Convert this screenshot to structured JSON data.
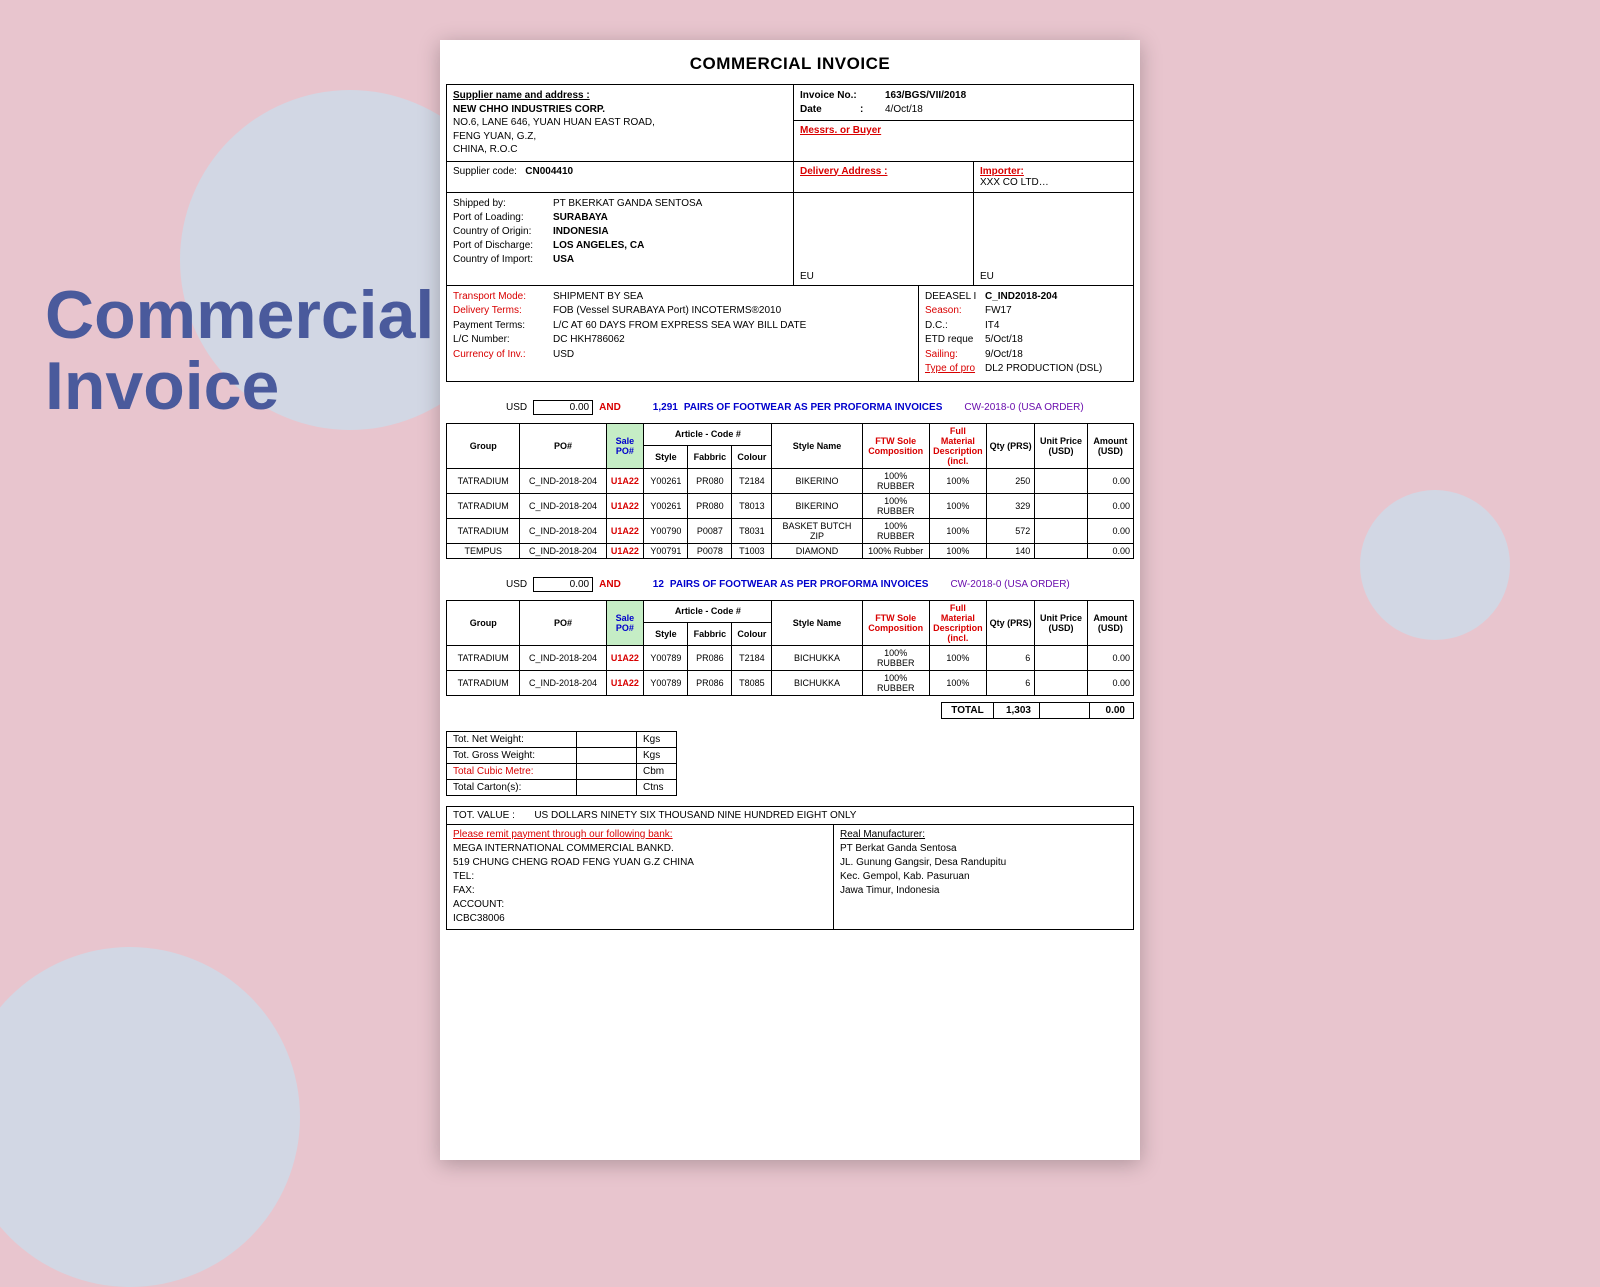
{
  "sideTitle": "Commercial\nInvoice",
  "docTitle": "COMMERCIAL INVOICE",
  "supplier": {
    "heading": "Supplier name and address :",
    "name": "NEW CHHO INDUSTRIES CORP.",
    "line1": "NO.6, LANE 646, YUAN HUAN EAST ROAD,",
    "line2": "FENG YUAN, G.Z,",
    "line3": "CHINA, R.O.C"
  },
  "invoice": {
    "noLabel": "Invoice No.:",
    "no": "163/BGS/VII/2018",
    "dateLabel": "Date",
    "dateColon": ":",
    "date": "4/Oct/18",
    "buyerLabel": "Messrs. or Buyer"
  },
  "supplierCode": {
    "label": "Supplier code:",
    "value": "CN004410"
  },
  "deliveryAddressLabel": "Delivery Address :",
  "importer": {
    "label": "Importer:",
    "value": "XXX CO LTD…"
  },
  "shipping": {
    "shippedByLabel": "Shipped by:",
    "shippedBy": "PT BKERKAT GANDA SENTOSA",
    "portLoadingLabel": "Port of Loading:",
    "portLoading": "SURABAYA",
    "originLabel": "Country of Origin:",
    "origin": "INDONESIA",
    "dischargeLabel": "Port of Discharge:",
    "discharge": "LOS ANGELES, CA",
    "importLabel": "Country of Import:",
    "import": "USA",
    "eu1": "EU",
    "eu2": "EU"
  },
  "terms": {
    "transportModeLabel": "Transport Mode:",
    "transportMode": "SHIPMENT BY SEA",
    "deliveryTermsLabel": "Delivery Terms:",
    "deliveryTerms": "FOB (Vessel SURABAYA Port) INCOTERMS®2010",
    "paymentTermsLabel": "Payment Terms:",
    "paymentTerms": "L/C AT 60 DAYS FROM EXPRESS SEA WAY BILL  DATE",
    "lcNumberLabel": "L/C Number:",
    "lcNumber": "DC HKH786062",
    "currencyLabel": "Currency of Inv.:",
    "currency": "USD"
  },
  "rightInfo": {
    "deeaselLabel": "DEEASEL I",
    "deeasel": "C_IND2018-204",
    "seasonLabel": "Season:",
    "season": "FW17",
    "dcLabel": "D.C.:",
    "dc": "IT4",
    "etdLabel": "ETD reque",
    "etd": "5/Oct/18",
    "sailingLabel": "Sailing:",
    "sailing": "9/Oct/18",
    "typeLabel": "Type of pro",
    "type": "DL2  PRODUCTION (DSL)"
  },
  "summary1": {
    "usdLabel": "USD",
    "usdValue": "0.00",
    "and": "AND",
    "pairs": "1,291",
    "desc": "PAIRS OF FOOTWEAR AS PER PROFORMA INVOICES",
    "order": "CW-2018-0 (USA ORDER)"
  },
  "headers": {
    "group": "Group",
    "po": "PO#",
    "salePo": "Sale PO#",
    "article": "Article - Code #",
    "style": "Style",
    "fabric": "Fabbric",
    "colour": "Colour",
    "styleName": "Style Name",
    "sole": "FTW Sole Composition",
    "material": "Full Material Description (incl.",
    "qty": "Qty (PRS)",
    "unitPrice": "Unit Price (USD)",
    "amount": "Amount (USD)"
  },
  "items1": [
    {
      "group": "TATRADIUM",
      "po": "C_IND-2018-204",
      "salePo": "U1A22",
      "style": "Y00261",
      "fabric": "PR080",
      "colour": "T2184",
      "name": "BIKERINO",
      "sole": "100% RUBBER",
      "mat": "100%",
      "qty": "250",
      "price": "",
      "amt": "0.00"
    },
    {
      "group": "TATRADIUM",
      "po": "C_IND-2018-204",
      "salePo": "U1A22",
      "style": "Y00261",
      "fabric": "PR080",
      "colour": "T8013",
      "name": "BIKERINO",
      "sole": "100% RUBBER",
      "mat": "100%",
      "qty": "329",
      "price": "",
      "amt": "0.00"
    },
    {
      "group": "TATRADIUM",
      "po": "C_IND-2018-204",
      "salePo": "U1A22",
      "style": "Y00790",
      "fabric": "P0087",
      "colour": "T8031",
      "name": "BASKET BUTCH ZIP",
      "sole": "100% RUBBER",
      "mat": "100%",
      "qty": "572",
      "price": "",
      "amt": "0.00"
    },
    {
      "group": "TEMPUS",
      "po": "C_IND-2018-204",
      "salePo": "U1A22",
      "style": "Y00791",
      "fabric": "P0078",
      "colour": "T1003",
      "name": "DIAMOND",
      "sole": "100% Rubber",
      "mat": "100%",
      "qty": "140",
      "price": "",
      "amt": "0.00"
    }
  ],
  "summary2": {
    "usdLabel": "USD",
    "usdValue": "0.00",
    "and": "AND",
    "pairs": "12",
    "desc": "PAIRS OF FOOTWEAR AS PER PROFORMA INVOICES",
    "order": "CW-2018-0 (USA ORDER)"
  },
  "items2": [
    {
      "group": "TATRADIUM",
      "po": "C_IND-2018-204",
      "salePo": "U1A22",
      "style": "Y00789",
      "fabric": "PR086",
      "colour": "T2184",
      "name": "BICHUKKA",
      "sole": "100% RUBBER",
      "mat": "100%",
      "qty": "6",
      "price": "",
      "amt": "0.00"
    },
    {
      "group": "TATRADIUM",
      "po": "C_IND-2018-204",
      "salePo": "U1A22",
      "style": "Y00789",
      "fabric": "PR086",
      "colour": "T8085",
      "name": "BICHUKKA",
      "sole": "100% RUBBER",
      "mat": "100%",
      "qty": "6",
      "price": "",
      "amt": "0.00"
    }
  ],
  "totals": {
    "label": "TOTAL",
    "qty": "1,303",
    "price": "",
    "amt": "0.00"
  },
  "weights": {
    "netLabel": "Tot. Net Weight:",
    "netUnit": "Kgs",
    "grossLabel": "Tot. Gross Weight:",
    "grossUnit": "Kgs",
    "cubicLabel": "Total Cubic Metre:",
    "cubicUnit": "Cbm",
    "cartonLabel": "Total Carton(s):",
    "cartonUnit": "Ctns"
  },
  "footer": {
    "totValueLabel": "TOT. VALUE :",
    "totValue": "US DOLLARS NINETY SIX THOUSAND NINE HUNDRED EIGHT ONLY",
    "remitLabel": "Please remit payment  through our following bank:",
    "bank1": "MEGA INTERNATIONAL  COMMERCIAL  BANKD.",
    "bank2": "519 CHUNG CHENG ROAD FENG YUAN G.Z CHINA",
    "telLabel": "TEL:",
    "faxLabel": "FAX:",
    "acctLabel": "ACCOUNT:",
    "icbc": "ICBC38006",
    "mfgLabel": "Real Manufacturer:",
    "mfg1": "PT Berkat Ganda Sentosa",
    "mfg2": "JL. Gunung Gangsir, Desa Randupitu",
    "mfg3": "Kec. Gempol, Kab. Pasuruan",
    "mfg4": "Jawa Timur, Indonesia"
  }
}
